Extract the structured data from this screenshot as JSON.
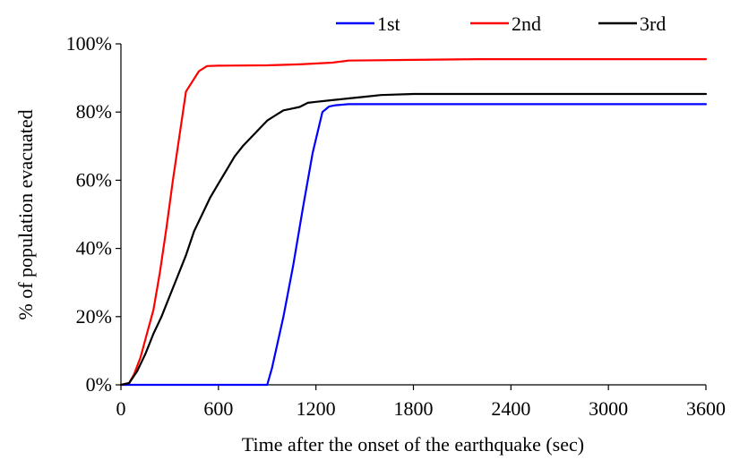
{
  "chart_data": {
    "type": "line",
    "title": "",
    "xlabel": "Time after the onset of the earthquake (sec)",
    "ylabel": "% of population evacuated",
    "xlim": [
      0,
      3600
    ],
    "ylim": [
      0,
      100
    ],
    "xticks": [
      0,
      600,
      1200,
      1800,
      2400,
      3000,
      3600
    ],
    "yticks": [
      0,
      20,
      40,
      60,
      80,
      100
    ],
    "xtick_labels": [
      "0",
      "600",
      "1200",
      "1800",
      "2400",
      "3000",
      "3600"
    ],
    "ytick_labels": [
      "0%",
      "20%",
      "40%",
      "60%",
      "80%",
      "100%"
    ],
    "grid": false,
    "legend_position": "top",
    "series": [
      {
        "name": "1st",
        "color": "#0000ff",
        "x": [
          0,
          900,
          930,
          1000,
          1060,
          1120,
          1180,
          1240,
          1280,
          1320,
          1400,
          3600
        ],
        "y": [
          0,
          0,
          5,
          20,
          35,
          52,
          68,
          80,
          81.6,
          82,
          82.3,
          82.3
        ]
      },
      {
        "name": "2nd",
        "color": "#ff0000",
        "x": [
          0,
          50,
          80,
          120,
          160,
          200,
          240,
          280,
          320,
          360,
          400,
          440,
          480,
          530,
          600,
          900,
          1100,
          1300,
          1400,
          1800,
          2200,
          3600
        ],
        "y": [
          0,
          0.5,
          3,
          8,
          15,
          22,
          33,
          46,
          60,
          73,
          86,
          89,
          92,
          93.5,
          93.6,
          93.7,
          94,
          94.5,
          95.1,
          95.3,
          95.5,
          95.5
        ]
      },
      {
        "name": "3rd",
        "color": "#000000",
        "x": [
          0,
          50,
          100,
          150,
          200,
          250,
          300,
          350,
          400,
          450,
          500,
          550,
          600,
          650,
          700,
          750,
          800,
          850,
          900,
          950,
          1000,
          1050,
          1100,
          1150,
          1200,
          1300,
          1400,
          1500,
          1600,
          1800,
          3600
        ],
        "y": [
          0,
          0.5,
          4,
          9,
          15,
          20,
          26,
          32,
          38,
          45,
          50,
          55,
          59,
          63,
          67,
          70,
          72.5,
          75,
          77.5,
          79,
          80.5,
          81,
          81.5,
          82.7,
          83,
          83.5,
          84,
          84.5,
          85,
          85.3,
          85.3
        ]
      }
    ]
  }
}
